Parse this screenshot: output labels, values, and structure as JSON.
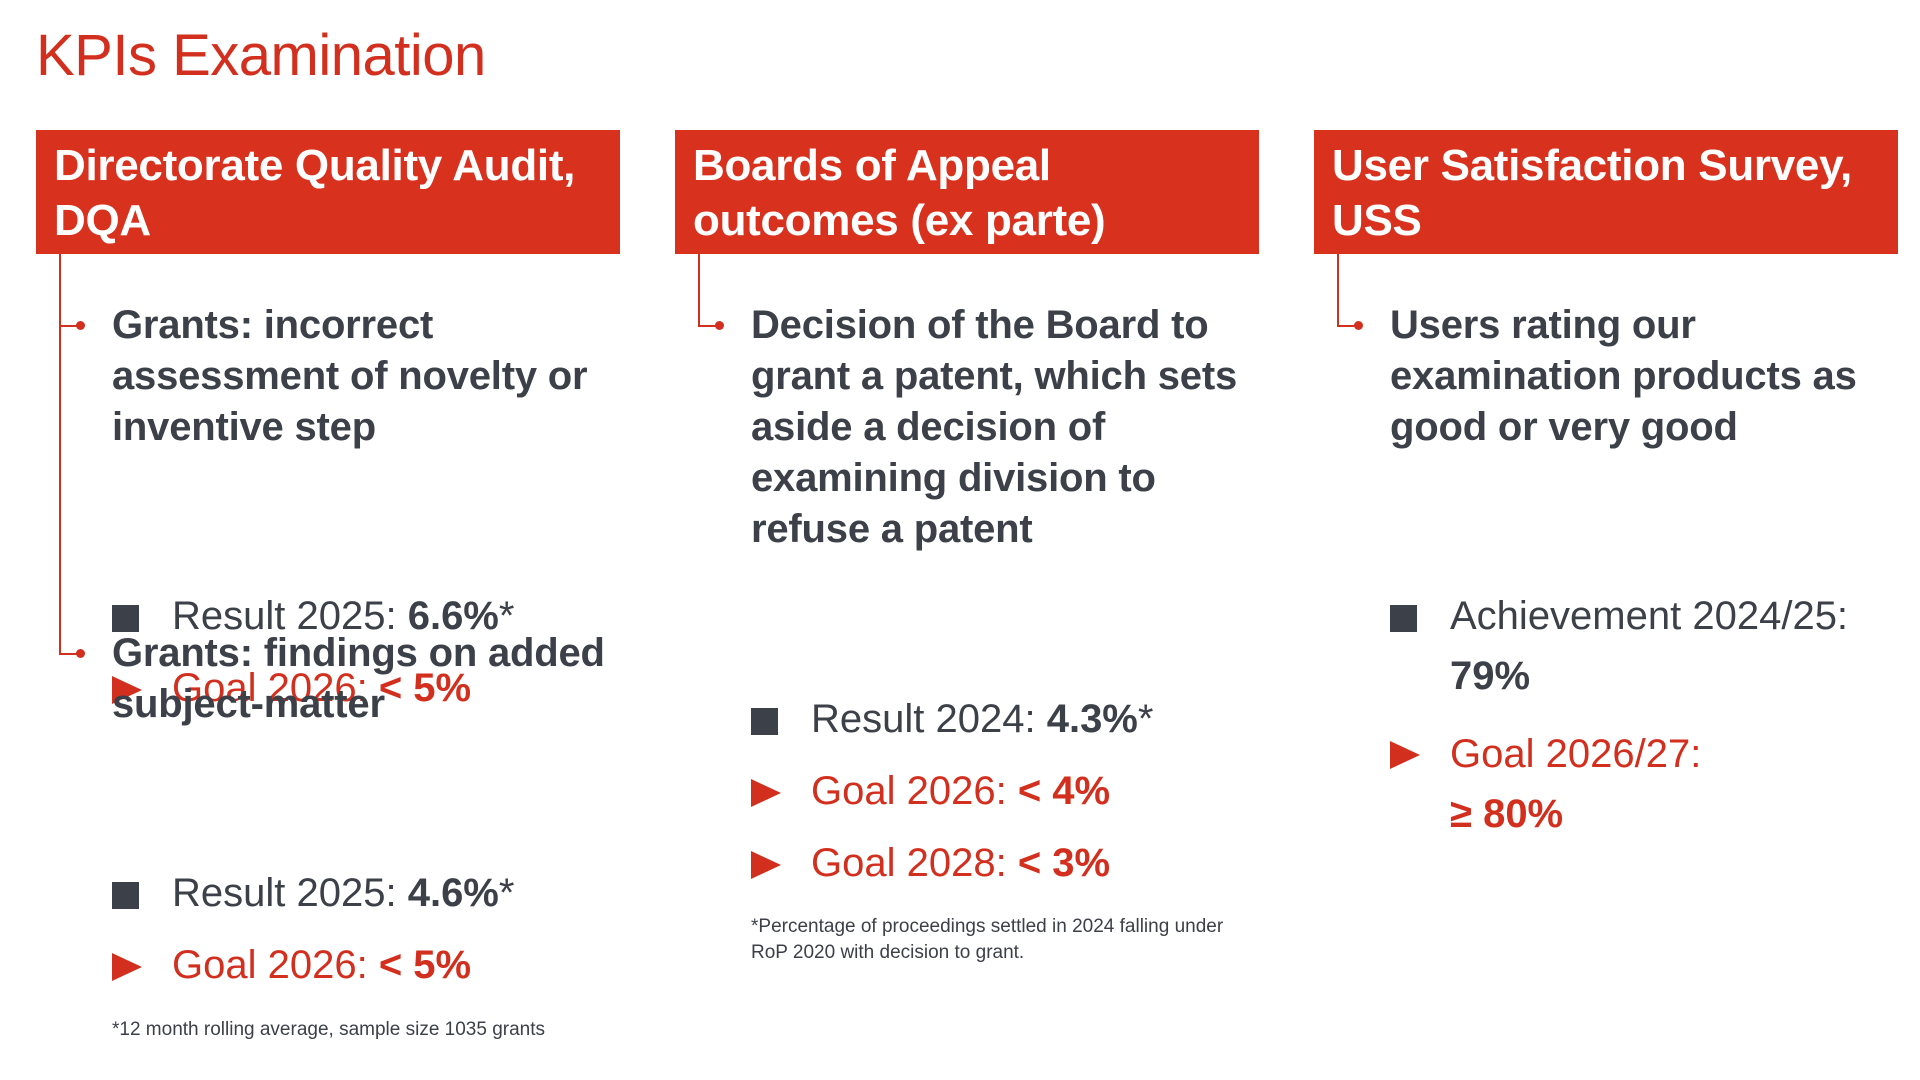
{
  "page": {
    "title": "KPIs Examination"
  },
  "columns": [
    {
      "header": "Directorate Quality Audit, DQA",
      "kpis": [
        {
          "title": "Grants: incorrect assessment of novelty or inventive step",
          "result_label": "Result 2025: ",
          "result_value": "6.6%",
          "result_mark": "*",
          "goal_label": "Goal 2026: ",
          "goal_value": "< 5%"
        },
        {
          "title": "Grants: findings on added subject-matter",
          "result_label": "Result 2025: ",
          "result_value": "4.6%",
          "result_mark": "*",
          "goal_label": "Goal 2026: ",
          "goal_value": "< 5%"
        }
      ],
      "footnote": "*12 month rolling average, sample size 1035 grants"
    },
    {
      "header": "Boards of Appeal outcomes (ex parte)",
      "kpis": [
        {
          "title": "Decision of the Board to grant a patent, which sets aside a decision of examining division to refuse a patent",
          "result_label": "Result 2024: ",
          "result_value": "4.3%",
          "result_mark": "*",
          "goals": [
            {
              "label": "Goal 2026: ",
              "value": "< 4%"
            },
            {
              "label": "Goal 2028: ",
              "value": "< 3%"
            }
          ]
        }
      ],
      "footnote": "*Percentage of proceedings settled in 2024 falling under RoP 2020 with decision to grant."
    },
    {
      "header": "User Satisfaction Survey, USS",
      "kpis": [
        {
          "title": "Users rating our examination products as good or very good",
          "result_label": "Achievement 2024/25:",
          "result_value": "79%",
          "goal_label": "Goal 2026/27:",
          "goal_value": "≥ 80%"
        }
      ]
    }
  ],
  "colors": {
    "brand_red": "#d8321f",
    "text_dark": "#3c4048",
    "background": "#ffffff"
  }
}
